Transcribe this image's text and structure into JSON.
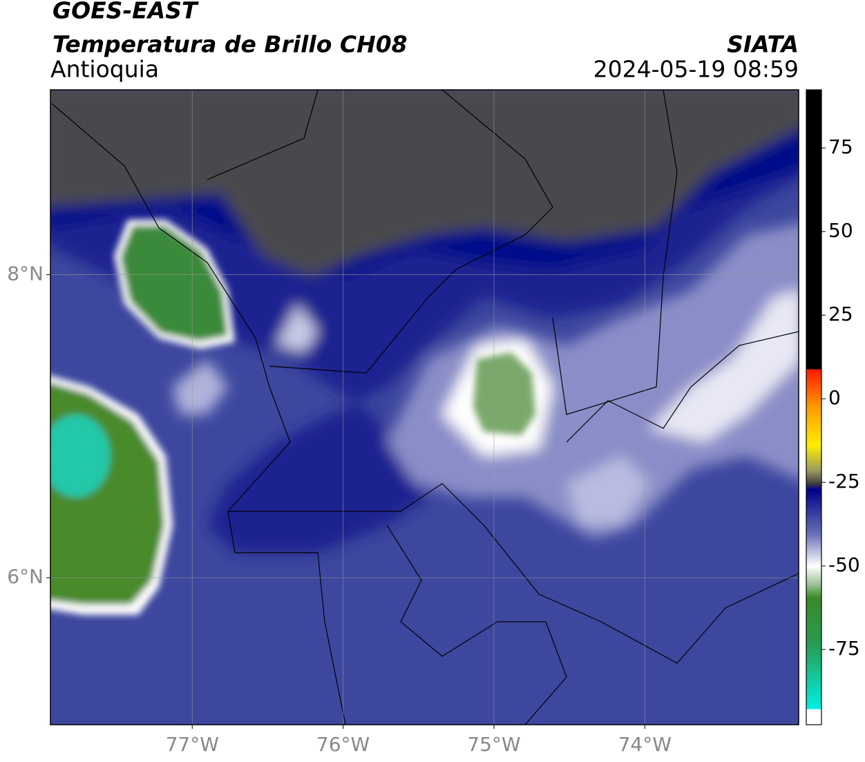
{
  "header": {
    "satellite": "GOES-EAST",
    "product": "Temperatura de Brillo CH08",
    "region": "Antioquia",
    "source": "SIATA",
    "datetime": "2024-05-19 08:59"
  },
  "map": {
    "xlim": [
      -77.94,
      -72.98
    ],
    "ylim": [
      5.03,
      9.22
    ],
    "xticks": [
      {
        "value": -77,
        "label": "77°W"
      },
      {
        "value": -76,
        "label": "76°W"
      },
      {
        "value": -75,
        "label": "75°W"
      },
      {
        "value": -74,
        "label": "74°W"
      }
    ],
    "yticks": [
      {
        "value": 6,
        "label": "6°N"
      },
      {
        "value": 8,
        "label": "8°N"
      }
    ],
    "grid": true
  },
  "colorbar": {
    "clim": [
      -97.5,
      92.4
    ],
    "ticks": [
      -75,
      -50,
      -25,
      0,
      25,
      50,
      75
    ]
  }
}
